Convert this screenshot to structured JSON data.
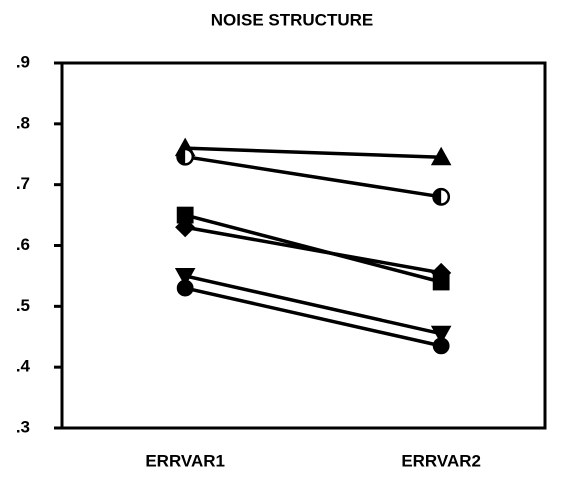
{
  "chart_data": {
    "type": "line",
    "title": "NOISE STRUCTURE",
    "categories": [
      "ERRVAR1",
      "ERRVAR2"
    ],
    "series": [
      {
        "marker": "triangle",
        "color": "#000000",
        "values": [
          0.76,
          0.745
        ]
      },
      {
        "marker": "half-circle",
        "color": "#000000",
        "values": [
          0.746,
          0.68
        ]
      },
      {
        "marker": "square",
        "color": "#000000",
        "values": [
          0.65,
          0.54
        ]
      },
      {
        "marker": "diamond",
        "color": "#000000",
        "values": [
          0.63,
          0.555
        ]
      },
      {
        "marker": "triangle-down",
        "color": "#000000",
        "values": [
          0.55,
          0.455
        ]
      },
      {
        "marker": "circle",
        "color": "#000000",
        "values": [
          0.53,
          0.435
        ]
      }
    ],
    "ylim": [
      0.3,
      0.9
    ],
    "yticks": [
      {
        "value": 0.3,
        "label": ".3"
      },
      {
        "value": 0.4,
        "label": ".4"
      },
      {
        "value": 0.5,
        "label": ".5"
      },
      {
        "value": 0.6,
        "label": ".6"
      },
      {
        "value": 0.7,
        "label": ".7"
      },
      {
        "value": 0.8,
        "label": ".8"
      },
      {
        "value": 0.9,
        "label": ".9"
      }
    ],
    "grid": false
  }
}
